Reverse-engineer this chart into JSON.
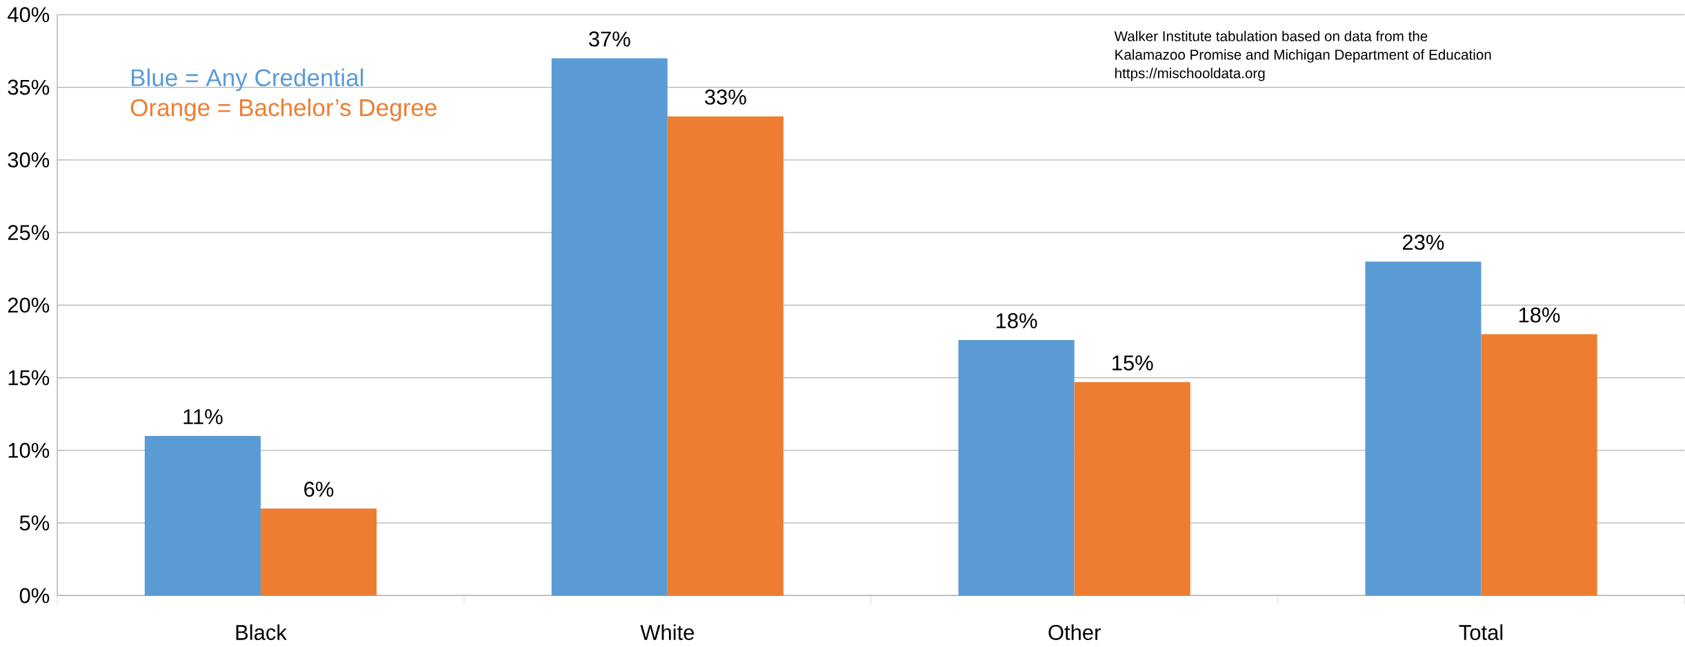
{
  "chart_data": {
    "type": "bar",
    "categories": [
      "Black",
      "White",
      "Other",
      "Total"
    ],
    "series": [
      {
        "name": "Blue = Any Credential",
        "color": "#5b9bd5",
        "values": [
          11,
          37,
          17.6,
          23
        ],
        "value_labels": [
          "11%",
          "37%",
          "18%",
          "23%"
        ]
      },
      {
        "name": "Orange = Bachelor’s Degree",
        "color": "#ed7d31",
        "values": [
          6,
          33,
          14.7,
          18
        ],
        "value_labels": [
          "6%",
          "33%",
          "15%",
          "18%"
        ]
      }
    ],
    "ylim": [
      0,
      40
    ],
    "yticks": [
      {
        "value": 0,
        "label": "0%"
      },
      {
        "value": 5,
        "label": "5%"
      },
      {
        "value": 10,
        "label": "10%"
      },
      {
        "value": 15,
        "label": "15%"
      },
      {
        "value": 20,
        "label": "20%"
      },
      {
        "value": 25,
        "label": "25%"
      },
      {
        "value": 30,
        "label": "30%"
      },
      {
        "value": 35,
        "label": "35%"
      },
      {
        "value": 40,
        "label": "40%"
      }
    ],
    "grid": "y",
    "legend": "top left",
    "annotations": [
      "Walker Institute tabulation based on data from the",
      "Kalamazoo Promise and Michigan Department of Education",
      "https://mischooldata.org"
    ]
  }
}
